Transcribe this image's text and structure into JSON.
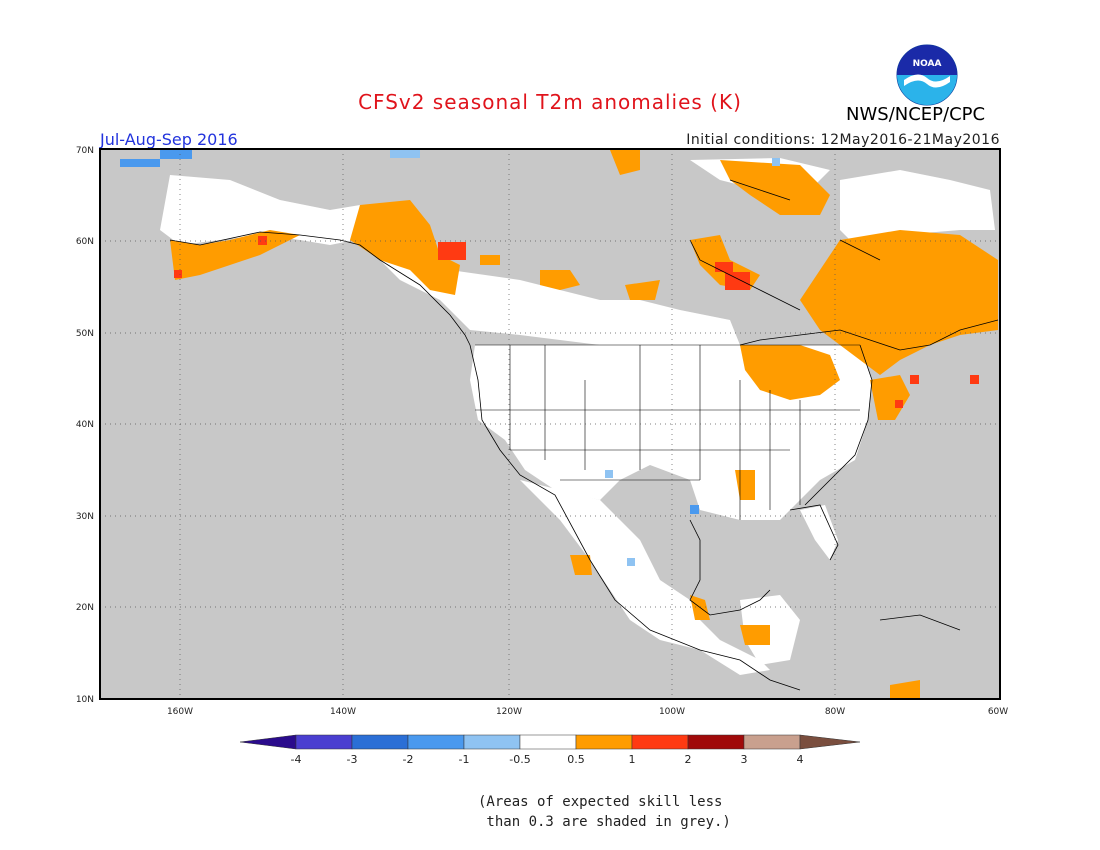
{
  "header": {
    "title": "CFSv2 seasonal T2m anomalies (K)",
    "organization": "NWS/NCEP/CPC",
    "season": "Jul-Aug-Sep 2016",
    "initial_conditions": "Initial conditions: 12May2016-21May2016",
    "logo_text": "NOAA"
  },
  "map": {
    "lat_labels": [
      "70N",
      "60N",
      "50N",
      "40N",
      "30N",
      "20N",
      "10N"
    ],
    "lon_labels": [
      "160W",
      "140W",
      "120W",
      "100W",
      "80W",
      "60W"
    ],
    "land_fill": "#c8c8c8",
    "ocean_fill": "#c8c8c8"
  },
  "colorbar": {
    "labels": [
      "-4",
      "-3",
      "-2",
      "-1",
      "-0.5",
      "0.5",
      "1",
      "2",
      "3",
      "4"
    ],
    "colors": [
      "#2a0b8c",
      "#4a3ed0",
      "#2b6fd6",
      "#4a99ee",
      "#8fc3f2",
      "#ffffff",
      "#ff9c00",
      "#ff3a12",
      "#a00a0a",
      "#c9a08e",
      "#7a4e3e"
    ]
  },
  "note": "(Areas of expected skill less\n than 0.3 are shaded in grey.)"
}
